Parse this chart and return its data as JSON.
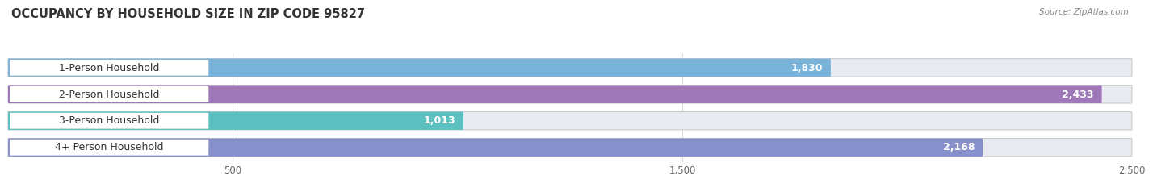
{
  "title": "OCCUPANCY BY HOUSEHOLD SIZE IN ZIP CODE 95827",
  "source": "Source: ZipAtlas.com",
  "categories": [
    "1-Person Household",
    "2-Person Household",
    "3-Person Household",
    "4+ Person Household"
  ],
  "values": [
    1830,
    2433,
    1013,
    2168
  ],
  "bar_colors": [
    "#7ab3d9",
    "#9e78b8",
    "#5dc0c0",
    "#8890cc"
  ],
  "bar_bg_color": "#e8eaf2",
  "label_bg_color": "#ffffff",
  "value_labels": [
    "1,830",
    "2,433",
    "1,013",
    "2,168"
  ],
  "xlim": [
    0,
    2500
  ],
  "xticks": [
    500,
    1500,
    2500
  ],
  "figsize": [
    14.06,
    2.33
  ],
  "dpi": 100,
  "title_fontsize": 10.5,
  "label_fontsize": 9,
  "value_fontsize": 9,
  "tick_fontsize": 8.5,
  "bg_color": "#ffffff"
}
